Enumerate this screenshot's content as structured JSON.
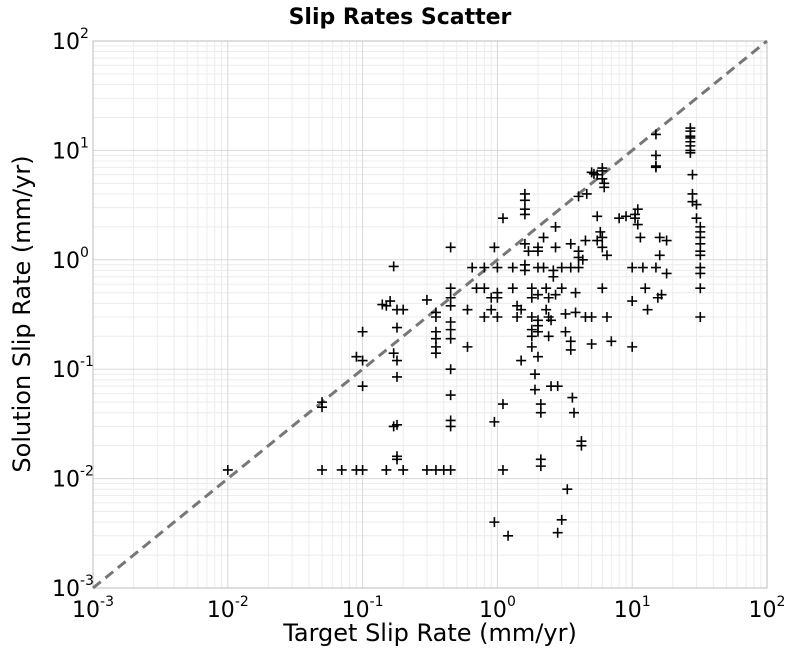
{
  "chart_data": {
    "type": "scatter",
    "title": "Slip Rates Scatter",
    "xlabel": "Target Slip Rate (mm/yr)",
    "ylabel": "Solution Slip Rate (mm/yr)",
    "xscale": "log",
    "yscale": "log",
    "xlim": [
      0.001,
      100
    ],
    "ylim": [
      0.001,
      100
    ],
    "grid": true,
    "marker": "+",
    "marker_color": "#000000",
    "reference_line": {
      "style": "dashed",
      "color": "#777777",
      "from": [
        0.001,
        0.001
      ],
      "to": [
        100,
        100
      ]
    },
    "x_ticks": [
      {
        "base": "10",
        "exp": "-3"
      },
      {
        "base": "10",
        "exp": "-2"
      },
      {
        "base": "10",
        "exp": "-1"
      },
      {
        "base": "10",
        "exp": "0"
      },
      {
        "base": "10",
        "exp": "1"
      },
      {
        "base": "10",
        "exp": "2"
      }
    ],
    "y_ticks": [
      {
        "base": "10",
        "exp": "-3"
      },
      {
        "base": "10",
        "exp": "-2"
      },
      {
        "base": "10",
        "exp": "-1"
      },
      {
        "base": "10",
        "exp": "0"
      },
      {
        "base": "10",
        "exp": "1"
      },
      {
        "base": "10",
        "exp": "2"
      }
    ],
    "points": [
      [
        0.01,
        0.012
      ],
      [
        0.05,
        0.012
      ],
      [
        0.07,
        0.012
      ],
      [
        0.09,
        0.012
      ],
      [
        0.1,
        0.012
      ],
      [
        0.15,
        0.012
      ],
      [
        0.2,
        0.012
      ],
      [
        0.3,
        0.012
      ],
      [
        0.35,
        0.012
      ],
      [
        0.4,
        0.012
      ],
      [
        0.45,
        0.012
      ],
      [
        0.05,
        0.045
      ],
      [
        0.05,
        0.05
      ],
      [
        0.1,
        0.07
      ],
      [
        0.09,
        0.13
      ],
      [
        0.1,
        0.12
      ],
      [
        0.1,
        0.22
      ],
      [
        0.17,
        0.03
      ],
      [
        0.18,
        0.031
      ],
      [
        0.18,
        0.016
      ],
      [
        0.18,
        0.015
      ],
      [
        0.18,
        0.085
      ],
      [
        0.17,
        0.14
      ],
      [
        0.18,
        0.12
      ],
      [
        0.18,
        0.24
      ],
      [
        0.17,
        0.87
      ],
      [
        0.14,
        0.39
      ],
      [
        0.16,
        0.42
      ],
      [
        0.15,
        0.38
      ],
      [
        0.18,
        0.35
      ],
      [
        0.2,
        0.35
      ],
      [
        0.3,
        0.43
      ],
      [
        0.35,
        0.33
      ],
      [
        0.35,
        0.3
      ],
      [
        0.35,
        0.22
      ],
      [
        0.35,
        0.19
      ],
      [
        0.35,
        0.16
      ],
      [
        0.35,
        0.14
      ],
      [
        0.45,
        0.27
      ],
      [
        0.45,
        0.23
      ],
      [
        0.45,
        0.19
      ],
      [
        0.45,
        0.1
      ],
      [
        0.45,
        0.058
      ],
      [
        0.45,
        0.034
      ],
      [
        0.45,
        0.03
      ],
      [
        0.45,
        1.3
      ],
      [
        0.45,
        0.55
      ],
      [
        0.45,
        0.45
      ],
      [
        0.45,
        0.38
      ],
      [
        0.6,
        0.16
      ],
      [
        0.6,
        0.35
      ],
      [
        0.65,
        0.85
      ],
      [
        0.7,
        0.55
      ],
      [
        0.8,
        0.85
      ],
      [
        0.8,
        0.3
      ],
      [
        0.8,
        0.55
      ],
      [
        0.9,
        0.45
      ],
      [
        0.9,
        0.35
      ],
      [
        0.95,
        1.3
      ],
      [
        1.0,
        0.85
      ],
      [
        1.0,
        0.5
      ],
      [
        1.0,
        0.45
      ],
      [
        1.0,
        0.3
      ],
      [
        0.95,
        0.033
      ],
      [
        0.95,
        0.004
      ],
      [
        1.1,
        2.4
      ],
      [
        1.1,
        0.048
      ],
      [
        1.1,
        0.012
      ],
      [
        1.2,
        0.003
      ],
      [
        1.3,
        0.85
      ],
      [
        1.3,
        0.55
      ],
      [
        1.4,
        0.38
      ],
      [
        1.4,
        0.3
      ],
      [
        1.5,
        0.35
      ],
      [
        1.5,
        0.12
      ],
      [
        1.6,
        4.0
      ],
      [
        1.6,
        3.5
      ],
      [
        1.6,
        2.9
      ],
      [
        1.6,
        2.6
      ],
      [
        1.6,
        1.4
      ],
      [
        1.6,
        0.9
      ],
      [
        1.6,
        0.8
      ],
      [
        1.7,
        1.2
      ],
      [
        1.8,
        0.55
      ],
      [
        1.8,
        0.45
      ],
      [
        1.8,
        0.3
      ],
      [
        1.8,
        0.23
      ],
      [
        1.8,
        0.2
      ],
      [
        1.8,
        0.16
      ],
      [
        1.9,
        0.065
      ],
      [
        1.9,
        0.09
      ],
      [
        2.0,
        1.3
      ],
      [
        2.0,
        1.2
      ],
      [
        2.0,
        0.85
      ],
      [
        2.0,
        0.48
      ],
      [
        2.0,
        0.28
      ],
      [
        2.0,
        0.25
      ],
      [
        2.0,
        0.22
      ],
      [
        2.0,
        0.13
      ],
      [
        2.1,
        0.048
      ],
      [
        2.1,
        0.04
      ],
      [
        2.1,
        0.015
      ],
      [
        2.1,
        0.013
      ],
      [
        2.2,
        1.6
      ],
      [
        2.2,
        0.85
      ],
      [
        2.3,
        0.55
      ],
      [
        2.3,
        0.35
      ],
      [
        2.4,
        0.45
      ],
      [
        2.4,
        0.3
      ],
      [
        2.4,
        0.2
      ],
      [
        2.5,
        0.28
      ],
      [
        2.5,
        0.07
      ],
      [
        2.6,
        0.7
      ],
      [
        2.6,
        0.8
      ],
      [
        2.7,
        2.0
      ],
      [
        2.7,
        1.3
      ],
      [
        2.7,
        0.48
      ],
      [
        2.8,
        0.07
      ],
      [
        2.8,
        0.0032
      ],
      [
        3.0,
        0.0042
      ],
      [
        3.0,
        0.85
      ],
      [
        3.0,
        0.55
      ],
      [
        3.2,
        0.32
      ],
      [
        3.2,
        0.22
      ],
      [
        3.3,
        0.008
      ],
      [
        3.5,
        1.4
      ],
      [
        3.5,
        0.85
      ],
      [
        3.5,
        0.18
      ],
      [
        3.5,
        0.15
      ],
      [
        3.6,
        0.055
      ],
      [
        3.7,
        0.04
      ],
      [
        3.8,
        0.5
      ],
      [
        3.8,
        0.33
      ],
      [
        4.0,
        1.2
      ],
      [
        4.0,
        1.05
      ],
      [
        4.0,
        0.85
      ],
      [
        4.0,
        3.8
      ],
      [
        4.2,
        0.022
      ],
      [
        4.2,
        0.02
      ],
      [
        4.3,
        1.0
      ],
      [
        4.5,
        1.5
      ],
      [
        4.5,
        0.3
      ],
      [
        4.6,
        4.0
      ],
      [
        5.0,
        0.17
      ],
      [
        5.0,
        0.3
      ],
      [
        5.0,
        6.3
      ],
      [
        5.2,
        6.1
      ],
      [
        5.5,
        6.0
      ],
      [
        5.5,
        2.5
      ],
      [
        5.5,
        1.5
      ],
      [
        5.8,
        1.8
      ],
      [
        6.0,
        1.6
      ],
      [
        6.0,
        1.3
      ],
      [
        6.0,
        0.55
      ],
      [
        6.0,
        6.9
      ],
      [
        6.0,
        6.5
      ],
      [
        6.0,
        5.5
      ],
      [
        6.2,
        5.0
      ],
      [
        6.2,
        4.6
      ],
      [
        6.5,
        1.1
      ],
      [
        6.5,
        0.3
      ],
      [
        7.0,
        0.18
      ],
      [
        8.0,
        2.4
      ],
      [
        9.0,
        2.5
      ],
      [
        10.0,
        0.85
      ],
      [
        10.0,
        0.42
      ],
      [
        10.0,
        0.16
      ],
      [
        10.5,
        2.6
      ],
      [
        10.5,
        2.4
      ],
      [
        11.0,
        2.9
      ],
      [
        11.0,
        2.1
      ],
      [
        11.5,
        1.6
      ],
      [
        12.0,
        0.85
      ],
      [
        12.5,
        0.55
      ],
      [
        13.0,
        0.35
      ],
      [
        15.0,
        14.0
      ],
      [
        15.0,
        9.0
      ],
      [
        15.0,
        7.2
      ],
      [
        15.0,
        7.0
      ],
      [
        15.0,
        0.85
      ],
      [
        15.5,
        0.45
      ],
      [
        16.0,
        1.6
      ],
      [
        16.0,
        1.1
      ],
      [
        16.5,
        0.48
      ],
      [
        18.0,
        1.5
      ],
      [
        18.0,
        0.75
      ],
      [
        27.0,
        16.0
      ],
      [
        27.0,
        15.0
      ],
      [
        27.0,
        13.5
      ],
      [
        27.0,
        13.0
      ],
      [
        27.0,
        12.0
      ],
      [
        27.0,
        11.0
      ],
      [
        27.0,
        10.0
      ],
      [
        27.0,
        9.5
      ],
      [
        28.0,
        6.0
      ],
      [
        28.0,
        4.0
      ],
      [
        28.0,
        3.4
      ],
      [
        30.0,
        3.2
      ],
      [
        30.0,
        2.4
      ],
      [
        32.0,
        2.0
      ],
      [
        32.0,
        1.8
      ],
      [
        32.0,
        1.6
      ],
      [
        32.0,
        1.4
      ],
      [
        32.0,
        1.2
      ],
      [
        32.0,
        1.1
      ],
      [
        32.0,
        0.85
      ],
      [
        32.0,
        0.75
      ],
      [
        32.0,
        0.55
      ],
      [
        32.0,
        0.3
      ]
    ]
  }
}
